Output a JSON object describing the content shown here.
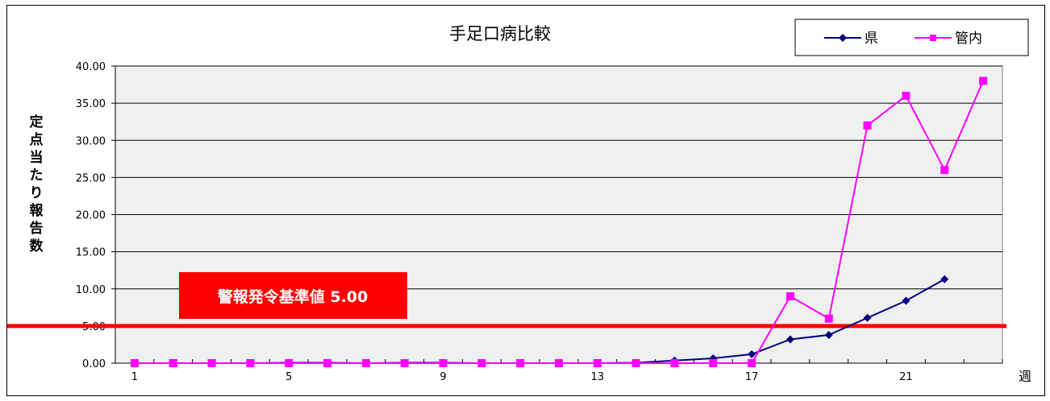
{
  "chart_data": {
    "type": "line",
    "title": "手足口病比較",
    "xlabel": "週",
    "ylabel": "定点当たり報告数",
    "ylim": [
      0,
      40
    ],
    "y_ticks": [
      "0.00",
      "5.00",
      "10.00",
      "15.00",
      "20.00",
      "25.00",
      "30.00",
      "35.00",
      "40.00"
    ],
    "x_ticks": [
      "1",
      "5",
      "9",
      "13",
      "17",
      "21"
    ],
    "x": [
      1,
      2,
      3,
      4,
      5,
      6,
      7,
      8,
      9,
      10,
      11,
      12,
      13,
      14,
      15,
      16,
      17,
      18,
      19,
      20,
      21,
      22,
      23
    ],
    "grid": "horizontal",
    "legend_position": "top-right",
    "series": [
      {
        "name": "県",
        "color": "#000080",
        "marker": "diamond",
        "values": [
          0,
          0,
          0,
          0,
          0.05,
          0.05,
          0,
          0.05,
          0.05,
          0,
          0,
          0,
          0,
          0.05,
          0.35,
          0.65,
          1.2,
          3.2,
          3.8,
          6.1,
          8.4,
          11.3,
          null
        ]
      },
      {
        "name": "管内",
        "color": "#ff00ff",
        "marker": "square",
        "values": [
          0,
          0,
          0,
          0,
          0,
          0,
          0,
          0,
          0,
          0,
          0,
          0,
          0,
          0,
          0,
          0,
          0,
          9,
          6,
          32,
          36,
          26,
          38
        ]
      }
    ],
    "threshold": {
      "value": 5.0,
      "color": "#ff0000",
      "label": "警報発令基準値 5.00"
    }
  }
}
